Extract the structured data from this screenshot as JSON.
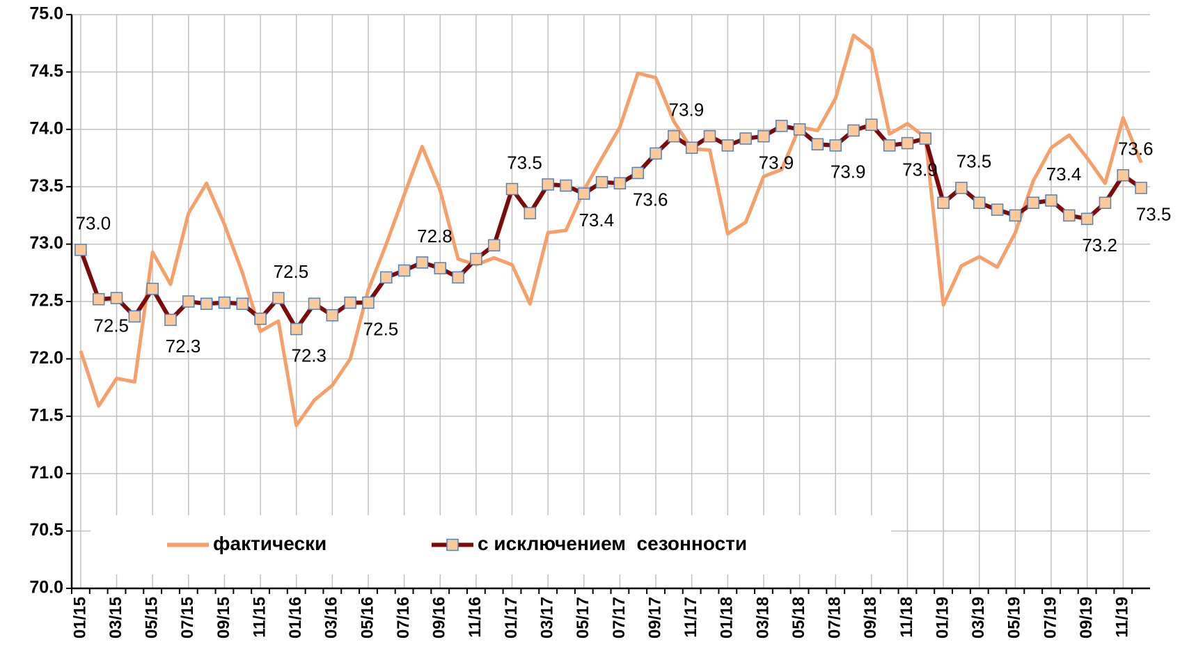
{
  "chart_data": {
    "type": "line",
    "categories": [
      "01/15",
      null,
      "03/15",
      null,
      "05/15",
      null,
      "07/15",
      null,
      "09/15",
      null,
      "11/15",
      null,
      "01/16",
      null,
      "03/16",
      null,
      "05/16",
      null,
      "07/16",
      null,
      "09/16",
      null,
      "11/16",
      null,
      "01/17",
      null,
      "03/17",
      null,
      "05/17",
      null,
      "07/17",
      null,
      "09/17",
      null,
      "11/17",
      null,
      "01/18",
      null,
      "03/18",
      null,
      "05/18",
      null,
      "07/18",
      null,
      "09/18",
      null,
      "11/18",
      null,
      "01/19",
      null,
      "03/19",
      null,
      "05/19",
      null,
      "07/19",
      null,
      "09/19",
      null,
      "11/19",
      null
    ],
    "series": [
      {
        "name": "фактически",
        "color": "#f79f6b",
        "values": [
          72.07,
          71.59,
          71.83,
          71.8,
          72.93,
          72.65,
          73.27,
          73.53,
          73.17,
          72.75,
          72.24,
          72.33,
          71.42,
          71.64,
          71.77,
          72.0,
          72.6,
          73.0,
          73.43,
          73.85,
          73.47,
          72.87,
          72.82,
          72.88,
          72.82,
          72.48,
          73.1,
          73.12,
          73.47,
          73.75,
          74.02,
          74.49,
          74.45,
          74.07,
          73.83,
          73.82,
          73.09,
          73.19,
          73.59,
          73.65,
          74.02,
          73.99,
          74.27,
          74.82,
          74.7,
          73.96,
          74.05,
          73.93,
          72.47,
          72.81,
          72.89,
          72.8,
          73.1,
          73.55,
          73.84,
          73.95,
          73.75,
          73.53,
          74.1,
          73.71
        ]
      },
      {
        "name": "с исключением  сезонности",
        "color": "#7b0a0a",
        "marker_color": "#fcc99a",
        "marker_edge": "#4f81bd",
        "values": [
          72.95,
          72.52,
          72.53,
          72.37,
          72.61,
          72.34,
          72.5,
          72.48,
          72.49,
          72.48,
          72.35,
          72.53,
          72.26,
          72.48,
          72.38,
          72.49,
          72.49,
          72.71,
          72.77,
          72.84,
          72.79,
          72.71,
          72.87,
          72.99,
          73.48,
          73.27,
          73.52,
          73.51,
          73.44,
          73.54,
          73.53,
          73.62,
          73.79,
          73.94,
          73.84,
          73.94,
          73.86,
          73.92,
          73.94,
          74.03,
          74.0,
          73.87,
          73.86,
          73.99,
          74.04,
          73.86,
          73.88,
          73.92,
          73.36,
          73.49,
          73.36,
          73.3,
          73.25,
          73.36,
          73.38,
          73.25,
          73.22,
          73.36,
          73.6,
          73.49
        ],
        "value_labels": [
          "73.0",
          "72.5",
          null,
          null,
          null,
          "72.3",
          null,
          null,
          null,
          null,
          null,
          "72.5",
          "72.3",
          null,
          null,
          null,
          "72.5",
          null,
          null,
          "72.8",
          null,
          null,
          null,
          null,
          "73.5",
          null,
          null,
          null,
          "73.4",
          null,
          null,
          "73.6",
          null,
          "73.9",
          null,
          null,
          null,
          null,
          "73.9",
          null,
          null,
          null,
          "73.9",
          null,
          null,
          null,
          "73.9",
          null,
          null,
          "73.5",
          null,
          null,
          null,
          null,
          "73.4",
          null,
          "73.2",
          null,
          "73.6",
          "73.5"
        ]
      }
    ],
    "ylim": [
      70.0,
      75.0
    ],
    "yticks": [
      {
        "value": 70,
        "label": "70.0"
      },
      70.5,
      {
        "value": 71,
        "label": "71.0"
      },
      71.5,
      {
        "value": 72,
        "label": "72.0"
      },
      72.5,
      {
        "value": 73,
        "label": "73.0"
      },
      73.5,
      {
        "value": 74,
        "label": "74.0"
      },
      74.5,
      {
        "value": 75,
        "label": "75.0"
      }
    ],
    "grid": true,
    "legend": "bottom"
  }
}
